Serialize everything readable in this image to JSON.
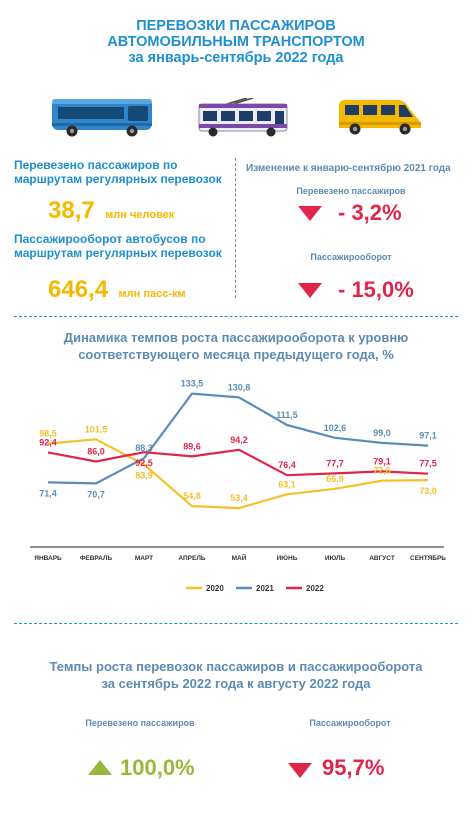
{
  "header": {
    "title_line1": "ПЕРЕВОЗКИ ПАССАЖИРОВ",
    "title_line2": "АВТОМОБИЛЬНЫМ ТРАНСПОРТОМ",
    "title_line3": "за январь-сентябрь 2022 года"
  },
  "stats": {
    "passengers_label": "Перевезено пассажиров по маршрутам регулярных перевозок",
    "passengers_value": "38,7",
    "passengers_unit": "млн человек",
    "turnover_label": "Пассажирооборот автобусов по маршрутам регулярных перевозок",
    "turnover_value": "646,4",
    "turnover_unit": "млн пасс-км",
    "change_title": "Изменение к январю-сентябрю 2021 года",
    "change_passengers_label": "Перевезено пассажиров",
    "change_passengers_value": "- 3,2%",
    "change_turnover_label": "Пассажирооборот",
    "change_turnover_value": "- 15,0%"
  },
  "chart_data": {
    "type": "line",
    "title": "Динамика темпов роста пассажирооборота к уровню соответствующего месяца предыдущего года, %",
    "categories": [
      "ЯНВАРЬ",
      "ФЕВРАЛЬ",
      "МАРТ",
      "АПРЕЛЬ",
      "МАЙ",
      "ИЮНЬ",
      "ИЮЛЬ",
      "АВГУСТ",
      "СЕНТЯБРЬ"
    ],
    "labels": {
      "2020": [
        "98,5",
        "101,5",
        "83,9",
        "54,8",
        "53,4",
        "63,1",
        "66,9",
        "72,6",
        "73,0"
      ],
      "2021": [
        "71,4",
        "70,7",
        "88,3",
        "133,5",
        "130,8",
        "111,5",
        "102,6",
        "99,0",
        "97,1"
      ],
      "2022": [
        "92,4",
        "86,0",
        "92,5",
        "89,6",
        "94,2",
        "76,4",
        "77,7",
        "79,1",
        "77,5"
      ]
    },
    "series": [
      {
        "name": "2020",
        "color": "#f5c02b",
        "values": [
          98.5,
          101.5,
          83.9,
          54.8,
          53.4,
          63.1,
          66.9,
          72.6,
          73.0
        ]
      },
      {
        "name": "2021",
        "color": "#5b8db8",
        "values": [
          71.4,
          70.7,
          88.3,
          133.5,
          130.8,
          111.5,
          102.6,
          99.0,
          97.1
        ]
      },
      {
        "name": "2022",
        "color": "#e0254a",
        "values": [
          92.4,
          86.0,
          92.5,
          89.6,
          94.2,
          76.4,
          77.7,
          79.1,
          77.5
        ]
      }
    ],
    "legend_position": "bottom",
    "grid": false
  },
  "section2": {
    "title_line1": "Темпы роста перевозок пассажиров и пассажирооборота",
    "title_line2": "за сентябрь 2022 года к августу 2022 года",
    "passengers_label": "Перевезено пассажиров",
    "passengers_value": "100,0%",
    "turnover_label": "Пассажирооборот",
    "turnover_value": "95,7%"
  },
  "icons": [
    "city-bus-icon",
    "trolleybus-icon",
    "minibus-icon"
  ],
  "colors": {
    "accent": "#1f8fd0",
    "up": "#98b83a",
    "down": "#e0254a",
    "highlight": "#f5b800"
  }
}
